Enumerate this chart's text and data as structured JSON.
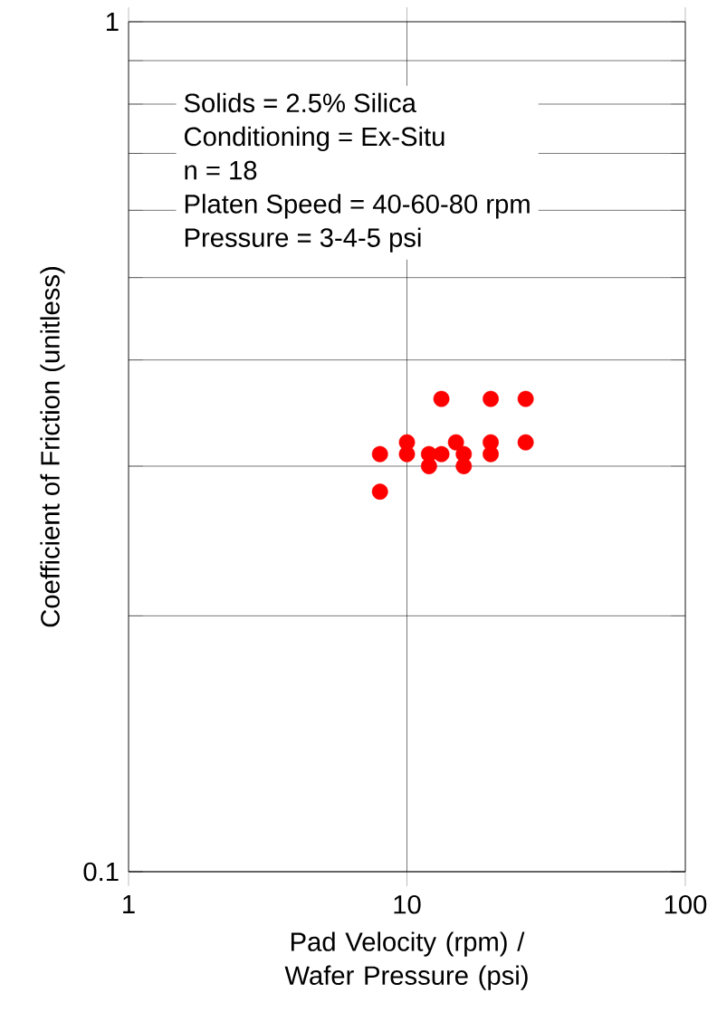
{
  "chart_data": {
    "type": "scatter",
    "xlabel": "Pad Velocity (rpm) / Wafer Pressure (psi)",
    "ylabel": "Coefficient of Friction (unitless)",
    "annotations": [
      "Solids = 2.5% Silica",
      "Conditioning = Ex-Situ",
      "n = 18",
      "Platen Speed = 40-60-80 rpm",
      "Pressure = 3-4-5 psi"
    ],
    "log": "xy",
    "xlim": [
      1,
      100
    ],
    "ylim": [
      0.1,
      1
    ],
    "xticks": [
      1,
      10,
      100
    ],
    "yticks": [
      0.1,
      1
    ],
    "grid": true,
    "marker": "circle",
    "series": [
      {
        "color": "#ff0000",
        "x": [
          8,
          8,
          10,
          10,
          12,
          12,
          13.3,
          13.3,
          15,
          16,
          16,
          20,
          20,
          20,
          26.7,
          26.7
        ],
        "values": [
          0.31,
          0.28,
          0.32,
          0.31,
          0.31,
          0.3,
          0.36,
          0.31,
          0.32,
          0.31,
          0.3,
          0.36,
          0.32,
          0.31,
          0.36,
          0.32
        ]
      }
    ]
  }
}
